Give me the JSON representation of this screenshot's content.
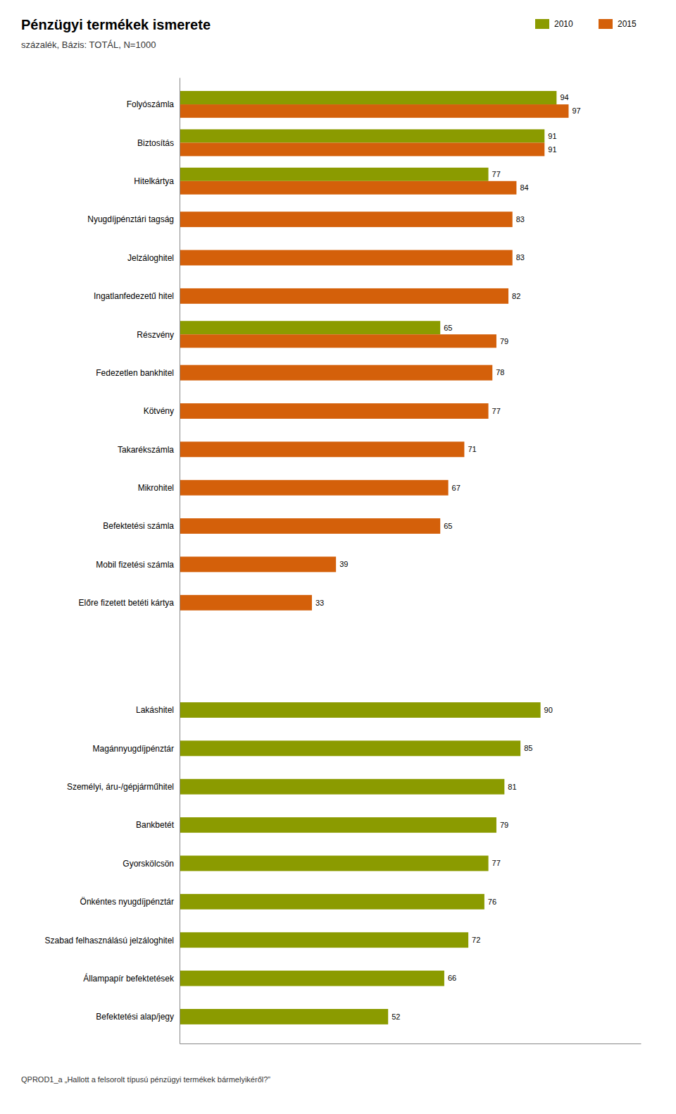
{
  "chart_data": {
    "type": "bar",
    "orientation": "horizontal",
    "title": "Pénzügyi termékek ismerete",
    "subtitle": "százalék, Bázis: TOTÁL, N=1000",
    "footnote": "QPROD1_a  „Hallott a felsorolt típusú pénzügyi termékek bármelyikéről?”",
    "categories": [
      "Folyószámla",
      "Biztosítás",
      "Hitelkártya",
      "Nyugdíjpénztári tagság",
      "Jelzáloghitel",
      "Ingatlanfedezetű hitel",
      "Részvény",
      "Fedezetlen bankhitel",
      "Kötvény",
      "Takarékszámla",
      "Mikrohitel",
      "Befektetési számla",
      "Mobil fizetési számla",
      "Előre fizetett betéti kártya",
      "Lakáshitel",
      "Magánnyugdíjpénztár",
      "Személyi, áru-/gépjárműhitel",
      "Bankbetét",
      "Gyorskölcsön",
      "Önkéntes nyugdíjpénztár",
      "Szabad felhasználású jelzáloghitel",
      "Állampapír befektetések",
      "Befektetési alap/jegy"
    ],
    "series": [
      {
        "name": "2010",
        "color": "#8B9B00",
        "values": [
          94,
          91,
          77,
          null,
          null,
          null,
          65,
          null,
          null,
          null,
          null,
          null,
          null,
          null,
          90,
          85,
          81,
          79,
          77,
          76,
          72,
          66,
          52
        ]
      },
      {
        "name": "2015",
        "color": "#D4600A",
        "values": [
          97,
          91,
          84,
          83,
          83,
          82,
          79,
          78,
          77,
          71,
          67,
          65,
          39,
          33,
          null,
          null,
          null,
          null,
          null,
          null,
          null,
          null,
          null
        ]
      }
    ],
    "xlim": [
      0,
      115
    ],
    "data_labels": true,
    "tick_labels": "y",
    "grid": false,
    "legend": "upper right"
  }
}
